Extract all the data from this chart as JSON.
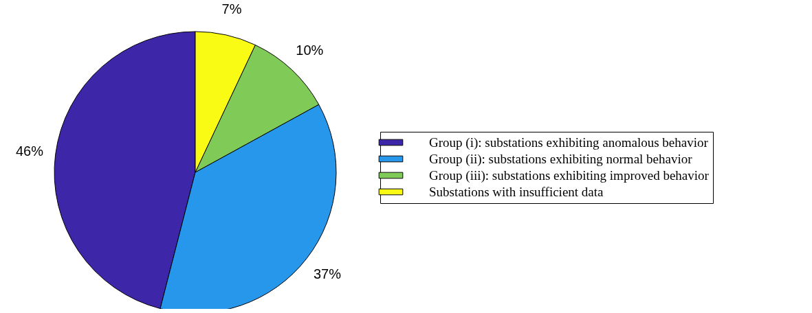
{
  "chart_data": {
    "type": "pie",
    "categories": [
      "Group (i): substations exhibiting anomalous behavior",
      "Group (ii): substations exhibiting normal behavior",
      "Group (iii): substations exhibiting improved behavior",
      "Substations with insufficient data"
    ],
    "values": [
      46,
      37,
      10,
      7
    ],
    "value_labels": [
      "46%",
      "37%",
      "10%",
      "7%"
    ],
    "colors": [
      "#3e26a8",
      "#2797eb",
      "#80cb58",
      "#f9fb15"
    ],
    "legend": "right"
  }
}
